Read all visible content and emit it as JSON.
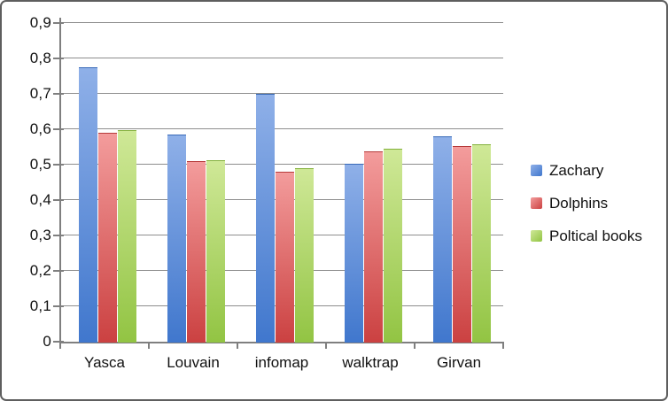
{
  "chart_data": {
    "type": "bar",
    "title": "",
    "categories": [
      "Yasca",
      "Louvain",
      "infomap",
      "walktrap",
      "Girvan"
    ],
    "series": [
      {
        "name": "Zachary",
        "color": "#6f9ad9",
        "color_light": "#8fb0e8",
        "color_dark": "#4077cd",
        "values": [
          0.775,
          0.585,
          0.7,
          0.503,
          0.58
        ]
      },
      {
        "name": "Dolphins",
        "color": "#e07070",
        "color_light": "#f39c9c",
        "color_dark": "#cb4141",
        "values": [
          0.59,
          0.51,
          0.48,
          0.538,
          0.553
        ]
      },
      {
        "name": "Poltical books",
        "color": "#b1d86e",
        "color_light": "#cfe897",
        "color_dark": "#92c443",
        "values": [
          0.598,
          0.512,
          0.49,
          0.545,
          0.558
        ]
      }
    ],
    "y_axis": {
      "min": 0,
      "max": 0.9,
      "step": 0.1,
      "tick_labels": [
        "0,9",
        "0,8",
        "0,7",
        "0,6",
        "0,5",
        "0,4",
        "0,3",
        "0,2",
        "0,1",
        "0"
      ],
      "tick_values": [
        0.9,
        0.8,
        0.7,
        0.6,
        0.5,
        0.4,
        0.3,
        0.2,
        0.1,
        0
      ]
    },
    "xlabel": "",
    "ylabel": "",
    "grid": true,
    "legend_position": "right",
    "colors": {
      "axis": "#7f7f7f",
      "gridline": "#8e8e8e",
      "text": "#111111"
    }
  }
}
